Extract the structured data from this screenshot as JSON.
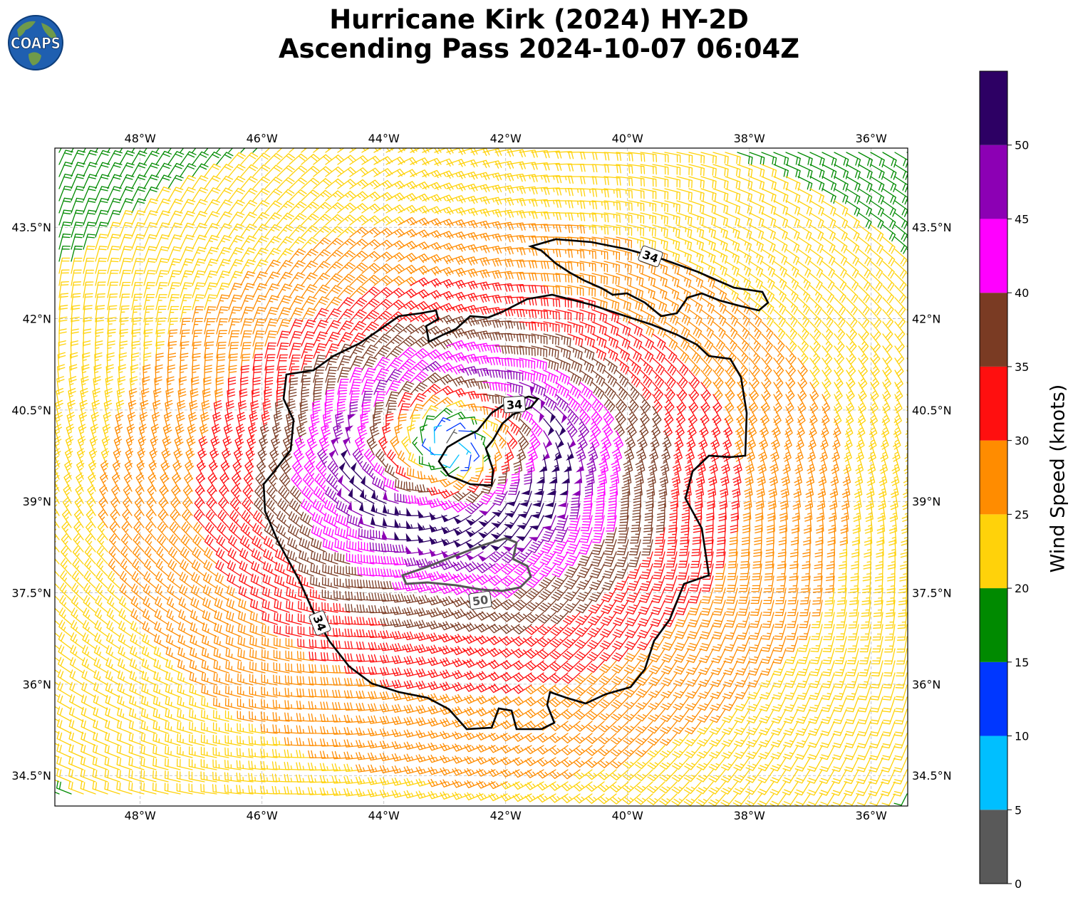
{
  "title": {
    "line1": "Hurricane Kirk (2024) HY-2D",
    "line2": "Ascending Pass 2024-10-07 06:04Z"
  },
  "logo": {
    "text": "COAPS",
    "icon": "globe-logo-icon",
    "ocean_color": "#1f5fb0",
    "land_color": "#6f9a4a"
  },
  "map": {
    "lon_range": [
      -49.4,
      -35.4
    ],
    "lat_range": [
      34.0,
      44.8
    ],
    "grid": true,
    "lon_ticks": [
      {
        "value": -48,
        "label": "48°W"
      },
      {
        "value": -46,
        "label": "46°W"
      },
      {
        "value": -44,
        "label": "44°W"
      },
      {
        "value": -42,
        "label": "42°W"
      },
      {
        "value": -40,
        "label": "40°W"
      },
      {
        "value": -38,
        "label": "38°W"
      },
      {
        "value": -36,
        "label": "36°W"
      }
    ],
    "lat_ticks": [
      {
        "value": 43.5,
        "label": "43.5°N"
      },
      {
        "value": 42,
        "label": "42°N"
      },
      {
        "value": 40.5,
        "label": "40.5°N"
      },
      {
        "value": 39,
        "label": "39°N"
      },
      {
        "value": 37.5,
        "label": "37.5°N"
      },
      {
        "value": 36,
        "label": "36°N"
      },
      {
        "value": 34.5,
        "label": "34.5°N"
      }
    ],
    "storm_center": {
      "lon": -42.9,
      "lat": 39.9
    },
    "rmw_deg": 1.3,
    "contours": [
      {
        "label": "34",
        "color": "#000000"
      },
      {
        "label": "50",
        "color": "#555555"
      }
    ]
  },
  "colorbar": {
    "label": "Wind Speed (knots)",
    "min": 0,
    "max": 55,
    "tick_values": [
      0,
      5,
      10,
      15,
      20,
      25,
      30,
      35,
      40,
      45,
      50
    ],
    "tick_labels": [
      "0",
      "5",
      "10",
      "15",
      "20",
      "25",
      "30",
      "35",
      "40",
      "45",
      "50"
    ],
    "bins": [
      {
        "from": 0,
        "to": 5,
        "color": "#595959"
      },
      {
        "from": 5,
        "to": 10,
        "color": "#00bfff"
      },
      {
        "from": 10,
        "to": 15,
        "color": "#0037ff"
      },
      {
        "from": 15,
        "to": 20,
        "color": "#008a00"
      },
      {
        "from": 20,
        "to": 25,
        "color": "#ffd20a"
      },
      {
        "from": 25,
        "to": 30,
        "color": "#ff8c00"
      },
      {
        "from": 30,
        "to": 35,
        "color": "#ff0f0f"
      },
      {
        "from": 35,
        "to": 40,
        "color": "#7a3b23"
      },
      {
        "from": 40,
        "to": 45,
        "color": "#ff00ff"
      },
      {
        "from": 45,
        "to": 50,
        "color": "#8c00b4"
      },
      {
        "from": 50,
        "to": 55,
        "color": "#2d0064"
      }
    ]
  }
}
